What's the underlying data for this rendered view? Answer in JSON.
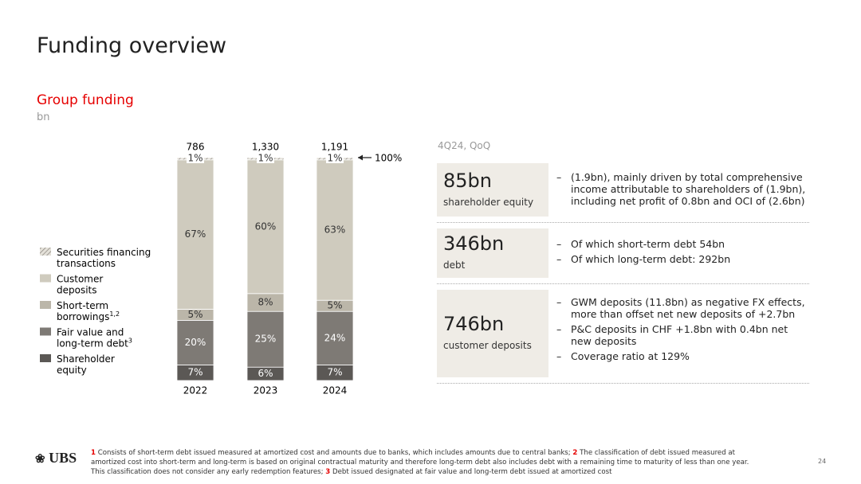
{
  "title": "Funding overview",
  "chart_data": {
    "type": "stacked-bar",
    "title": "Group funding",
    "subtitle": "bn",
    "categories": [
      "2022",
      "2023",
      "2024"
    ],
    "series": [
      {
        "name": "Shareholder equity",
        "color": "#5b5855",
        "values": [
          7,
          6,
          7
        ],
        "value_labels": [
          "7%",
          "6%",
          "7%"
        ]
      },
      {
        "name": "Fair value and long-term debt",
        "note": "3",
        "color": "#7e7a75",
        "values": [
          20,
          25,
          24
        ],
        "value_labels": [
          "20%",
          "25%",
          "24%"
        ]
      },
      {
        "name": "Short-term borrowings",
        "note": "1,2",
        "color": "#bbb6a9",
        "values": [
          5,
          8,
          5
        ],
        "value_labels": [
          "5%",
          "8%",
          "5%"
        ]
      },
      {
        "name": "Customer deposits",
        "color": "#cfcbbe",
        "values": [
          67,
          60,
          63
        ],
        "value_labels": [
          "67%",
          "60%",
          "63%"
        ]
      },
      {
        "name": "Securities financing transactions",
        "color": "hatch",
        "values": [
          1,
          1,
          1
        ],
        "value_labels": [
          "1%",
          "1%",
          "1%"
        ]
      }
    ],
    "totals": [
      {
        "value": 786,
        "label": "786"
      },
      {
        "value": 1330,
        "label": "1,330"
      },
      {
        "value": 1191,
        "label": "1,191"
      }
    ],
    "annotation": "100%"
  },
  "panel": {
    "header": "4Q24, QoQ",
    "rows": [
      {
        "value": "85bn",
        "label": "shareholder equity",
        "bullets": [
          "(1.9bn), mainly driven by total comprehensive income attributable to shareholders of (1.9bn), including net profit of 0.8bn and OCI of (2.6bn)"
        ]
      },
      {
        "value": "346bn",
        "label": "debt",
        "bullets": [
          "Of which short-term debt 54bn",
          "Of which long-term debt: 292bn"
        ]
      },
      {
        "value": "746bn",
        "label": "customer deposits",
        "bullets": [
          "GWM deposits (11.8bn) as negative FX effects, more than offset net new deposits of +2.7bn",
          "P&C deposits in CHF +1.8bn with 0.4bn net new deposits",
          "Coverage ratio at 129%"
        ]
      }
    ]
  },
  "logo": "UBS",
  "footnotes": [
    {
      "num": "1",
      "text": "Consists of short-term debt issued measured at amortized cost and amounts due to banks, which includes amounts due to central banks;"
    },
    {
      "num": "2",
      "text": "The classification of debt issued measured at amortized cost into short-term and long-term is based on original contractual maturity and therefore long-term debt also includes debt with a remaining time to maturity of less than one year. This classification does not consider any early redemption features;"
    },
    {
      "num": "3",
      "text": "Debt issued designated at fair value and long-term debt issued at amortized cost"
    }
  ],
  "page_number": "24"
}
